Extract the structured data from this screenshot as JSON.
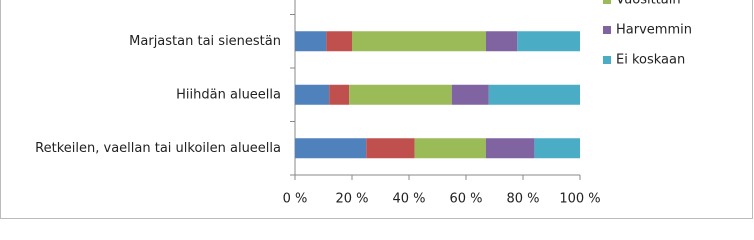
{
  "chart_data": {
    "type": "stacked-bar-horizontal",
    "categories": [
      "Marjastan tai sienestän",
      "Hiihdän alueella",
      "Retkeilen, vaellan tai ulkoilen alueella"
    ],
    "series": [
      {
        "name": null,
        "color": "#4f81bd",
        "values": [
          11,
          12,
          25
        ]
      },
      {
        "name": null,
        "color": "#c0504d",
        "values": [
          9,
          7,
          17
        ]
      },
      {
        "name": "Vuosittain",
        "color": "#9bbb59",
        "values": [
          47,
          36,
          25
        ]
      },
      {
        "name": "Harvemmin",
        "color": "#8064a2",
        "values": [
          11,
          13,
          17
        ]
      },
      {
        "name": "Ei koskaan",
        "color": "#4bacc6",
        "values": [
          22,
          32,
          16
        ]
      }
    ],
    "xlim": [
      0,
      100
    ],
    "xticks": [
      {
        "value": 0,
        "label": "0 %"
      },
      {
        "value": 20,
        "label": "20 %"
      },
      {
        "value": 40,
        "label": "40 %"
      },
      {
        "value": 60,
        "label": "60 %"
      },
      {
        "value": 80,
        "label": "80 %"
      },
      {
        "value": 100,
        "label": "100 %"
      }
    ],
    "legend": "right"
  }
}
